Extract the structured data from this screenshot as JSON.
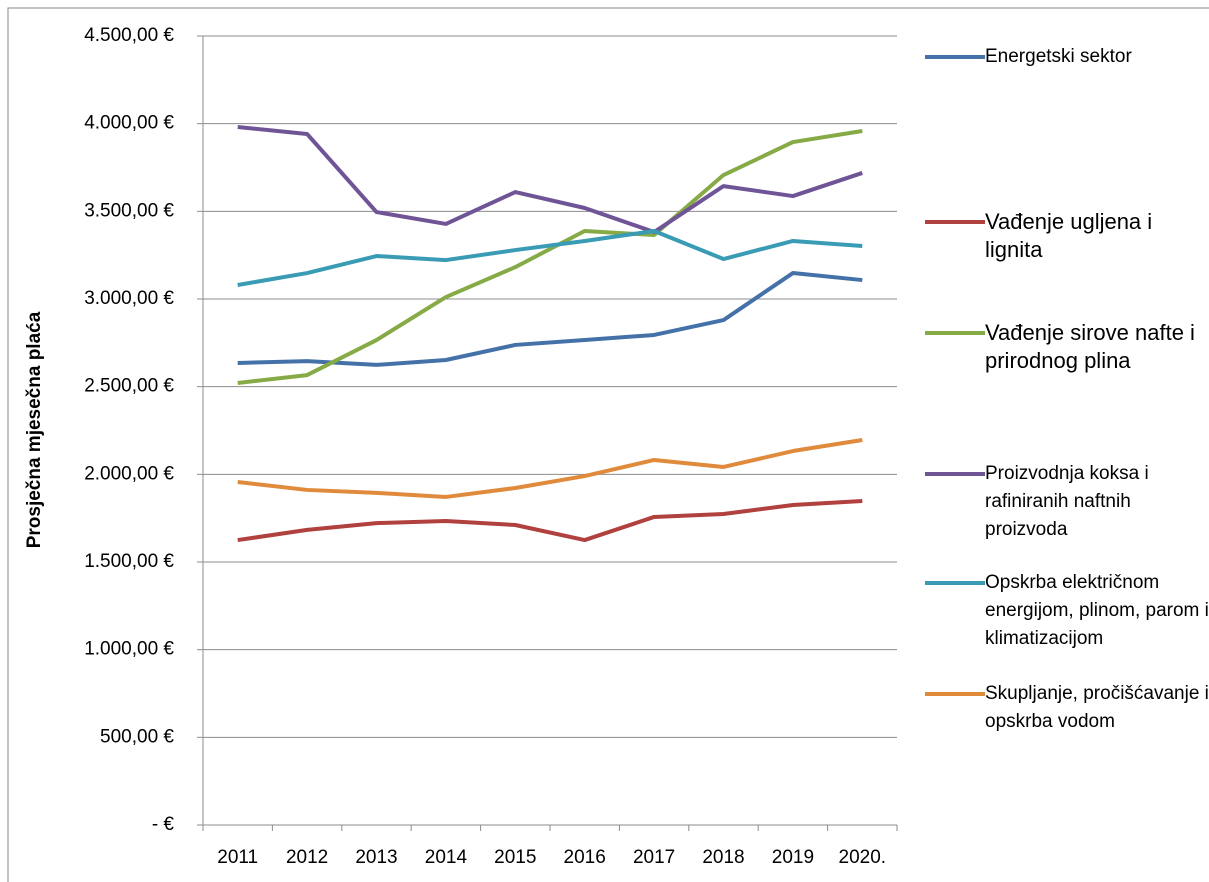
{
  "chart_data": {
    "type": "line",
    "y_axis_label": "Prosječna mjesečna plaća",
    "categories": [
      "2011",
      "2012",
      "2013",
      "2014",
      "2015",
      "2016",
      "2017",
      "2018",
      "2019",
      "2020."
    ],
    "ylim": [
      0,
      4500
    ],
    "yticks": [
      {
        "value": 0,
        "label": "-   €"
      },
      {
        "value": 500,
        "label": "500,00 €"
      },
      {
        "value": 1000,
        "label": "1.000,00 €"
      },
      {
        "value": 1500,
        "label": "1.500,00 €"
      },
      {
        "value": 2000,
        "label": "2.000,00 €"
      },
      {
        "value": 2500,
        "label": "2.500,00 €"
      },
      {
        "value": 3000,
        "label": "3.000,00 €"
      },
      {
        "value": 3500,
        "label": "3.500,00 €"
      },
      {
        "value": 4000,
        "label": "4.000,00 €"
      },
      {
        "value": 4500,
        "label": "4.500,00 €"
      }
    ],
    "grid": true,
    "legend": "right",
    "series": [
      {
        "name": "Energetski sektor",
        "color": "#4472a8",
        "values": [
          2635,
          2646,
          2624,
          2652,
          2738,
          2766,
          2795,
          2880,
          3148,
          3108
        ]
      },
      {
        "name": "Vađenje ugljena i lignita",
        "color": "#b0413e",
        "values": [
          1625,
          1683,
          1722,
          1734,
          1711,
          1625,
          1757,
          1774,
          1825,
          1848
        ]
      },
      {
        "name": "Vađenje sirove nafte i prirodnog plina",
        "color": "#86aa45",
        "values": [
          2521,
          2566,
          2766,
          3011,
          3182,
          3388,
          3365,
          3707,
          3895,
          3958
        ]
      },
      {
        "name": "Proizvodnja koksa i rafiniranih naftnih proizvoda",
        "color": "#6f5496",
        "values": [
          3981,
          3941,
          3496,
          3428,
          3610,
          3519,
          3382,
          3644,
          3587,
          3719
        ]
      },
      {
        "name": "Opskrba električnom energijom, plinom, parom i klimatizacijom",
        "color": "#3a9bb4",
        "values": [
          3080,
          3148,
          3245,
          3222,
          3279,
          3331,
          3388,
          3228,
          3331,
          3302
        ]
      },
      {
        "name": "Skupljanje, pročišćavanje i opskrba vodom",
        "color": "#e08a3c",
        "values": [
          1956,
          1911,
          1894,
          1871,
          1922,
          1990,
          2082,
          2042,
          2133,
          2196
        ]
      }
    ]
  }
}
